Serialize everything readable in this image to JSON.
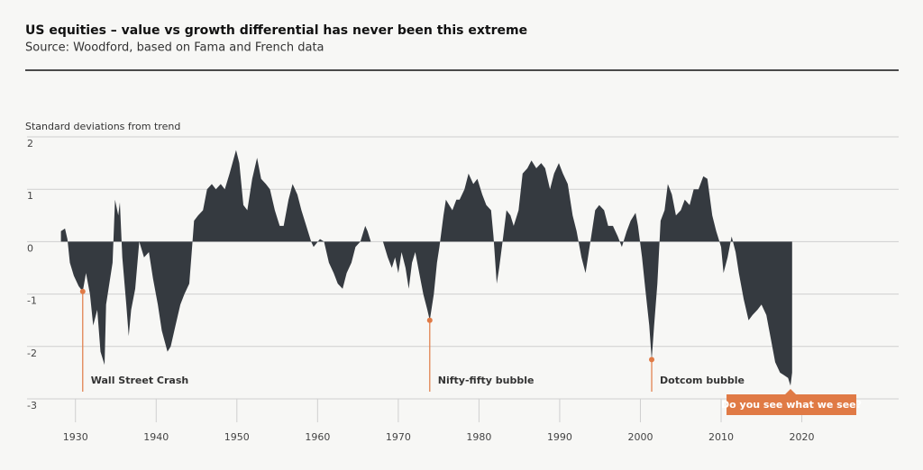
{
  "chart_data": {
    "type": "area",
    "title": "US equities – value vs growth differential has never been this extreme",
    "subtitle": "Source: Woodford, based on Fama and French data",
    "y_label": "Standard deviations from trend",
    "color": "#353a40",
    "accent_color": "#e07a45",
    "xlim": [
      1924,
      2032
    ],
    "ylim": [
      -3,
      2
    ],
    "xticks": [
      1930,
      1940,
      1950,
      1960,
      1970,
      1980,
      1990,
      2000,
      2010,
      2020
    ],
    "yticks": [
      -3,
      -2,
      -1,
      0,
      1,
      2
    ],
    "grid": true,
    "x": [
      1928.2,
      1928.7,
      1929.0,
      1929.3,
      1929.8,
      1930.4,
      1930.9,
      1931.3,
      1931.8,
      1932.2,
      1932.7,
      1933.1,
      1933.6,
      1933.8,
      1934.2,
      1934.6,
      1934.9,
      1935.3,
      1935.5,
      1935.8,
      1936.3,
      1936.6,
      1936.9,
      1937.4,
      1937.9,
      1938.5,
      1939.1,
      1939.6,
      1940.2,
      1940.7,
      1941.4,
      1941.8,
      1942.4,
      1943.0,
      1943.5,
      1944.1,
      1944.4,
      1944.7,
      1945.2,
      1945.8,
      1946.3,
      1946.9,
      1947.4,
      1948.0,
      1948.5,
      1949.1,
      1949.9,
      1950.3,
      1950.8,
      1951.3,
      1951.9,
      1952.5,
      1953.0,
      1953.6,
      1954.1,
      1954.7,
      1955.3,
      1955.8,
      1956.4,
      1956.9,
      1957.5,
      1958.0,
      1958.6,
      1959.2,
      1959.5,
      1960.3,
      1960.8,
      1961.4,
      1962.0,
      1962.5,
      1963.1,
      1963.6,
      1964.2,
      1964.7,
      1965.3,
      1965.9,
      1966.2,
      1966.6,
      1967.5,
      1968.1,
      1968.7,
      1969.2,
      1969.6,
      1970.0,
      1970.4,
      1970.9,
      1971.3,
      1971.7,
      1972.1,
      1972.6,
      1973.1,
      1973.6,
      1973.9,
      1974.4,
      1974.8,
      1975.1,
      1975.6,
      1975.9,
      1976.3,
      1976.7,
      1977.2,
      1977.6,
      1978.2,
      1978.7,
      1979.3,
      1979.8,
      1980.4,
      1980.9,
      1981.5,
      1981.8,
      1982.2,
      1982.5,
      1983.0,
      1983.4,
      1983.9,
      1984.3,
      1984.9,
      1985.4,
      1986.0,
      1986.5,
      1987.1,
      1987.7,
      1988.2,
      1988.8,
      1989.3,
      1989.9,
      1990.4,
      1991.0,
      1991.6,
      1992.1,
      1992.7,
      1993.2,
      1993.6,
      1993.9,
      1994.4,
      1994.9,
      1995.5,
      1996.0,
      1996.6,
      1997.2,
      1997.7,
      1998.3,
      1998.8,
      1999.4,
      1999.7,
      2000.2,
      2000.6,
      2001.1,
      2001.4,
      2001.7,
      2002.1,
      2002.5,
      2003.0,
      2003.4,
      2003.9,
      2004.4,
      2005.0,
      2005.5,
      2006.1,
      2006.6,
      2007.2,
      2007.8,
      2008.3,
      2008.9,
      2009.4,
      2010.0,
      2010.3,
      2010.8,
      2011.3,
      2011.8,
      2012.2,
      2012.8,
      2013.4,
      2013.9,
      2014.5,
      2015.0,
      2015.6,
      2016.1,
      2016.7,
      2017.3,
      2017.8,
      2018.3,
      2018.6,
      2018.8
    ],
    "values": [
      0.2,
      0.25,
      0.05,
      -0.4,
      -0.65,
      -0.85,
      -0.95,
      -0.6,
      -1.0,
      -1.6,
      -1.3,
      -2.1,
      -2.35,
      -1.2,
      -0.8,
      -0.4,
      0.8,
      0.5,
      0.75,
      -0.3,
      -1.2,
      -1.8,
      -1.3,
      -0.9,
      0,
      -0.3,
      -0.2,
      -0.7,
      -1.2,
      -1.7,
      -2.1,
      -2.0,
      -1.6,
      -1.2,
      -1.0,
      -0.8,
      -0.2,
      0.4,
      0.5,
      0.6,
      1.0,
      1.1,
      1.0,
      1.1,
      1.0,
      1.3,
      1.75,
      1.5,
      0.7,
      0.6,
      1.2,
      1.6,
      1.2,
      1.1,
      1.0,
      0.6,
      0.3,
      0.3,
      0.8,
      1.1,
      0.9,
      0.6,
      0.3,
      0,
      -0.1,
      0.05,
      0,
      -0.4,
      -0.6,
      -0.8,
      -0.9,
      -0.6,
      -0.4,
      -0.1,
      0,
      0.3,
      0.2,
      0,
      0,
      0,
      -0.3,
      -0.5,
      -0.3,
      -0.6,
      -0.2,
      -0.5,
      -0.9,
      -0.4,
      -0.2,
      -0.6,
      -1.0,
      -1.3,
      -1.5,
      -1.0,
      -0.4,
      -0.1,
      0.5,
      0.8,
      0.7,
      0.6,
      0.8,
      0.8,
      1.0,
      1.3,
      1.1,
      1.2,
      0.9,
      0.7,
      0.6,
      0.1,
      -0.8,
      -0.5,
      0.1,
      0.6,
      0.5,
      0.3,
      0.6,
      1.3,
      1.4,
      1.55,
      1.4,
      1.5,
      1.4,
      1.0,
      1.3,
      1.5,
      1.3,
      1.1,
      0.5,
      0.2,
      -0.3,
      -0.6,
      -0.2,
      0.1,
      0.6,
      0.7,
      0.6,
      0.3,
      0.3,
      0.1,
      -0.1,
      0.2,
      0.4,
      0.55,
      0.3,
      -0.3,
      -0.9,
      -1.6,
      -2.25,
      -1.6,
      -0.8,
      0.4,
      0.6,
      1.1,
      0.9,
      0.5,
      0.6,
      0.8,
      0.7,
      1.0,
      1.0,
      1.25,
      1.2,
      0.5,
      0.2,
      -0.1,
      -0.6,
      -0.3,
      0.1,
      -0.2,
      -0.6,
      -1.1,
      -1.5,
      -1.4,
      -1.3,
      -1.2,
      -1.4,
      -1.8,
      -2.3,
      -2.5,
      -2.55,
      -2.6,
      -2.75,
      -2.5
    ],
    "annotations": [
      {
        "text": "Wall Street Crash",
        "x": 1930.9,
        "y": -0.95
      },
      {
        "text": "Nifty-fifty bubble",
        "x": 1973.9,
        "y": -1.5
      },
      {
        "text": "Dotcom bubble",
        "x": 2001.4,
        "y": -2.25
      }
    ],
    "callout": {
      "text": "Do you see what we see?",
      "x": 2018.6,
      "y": -2.75
    }
  }
}
